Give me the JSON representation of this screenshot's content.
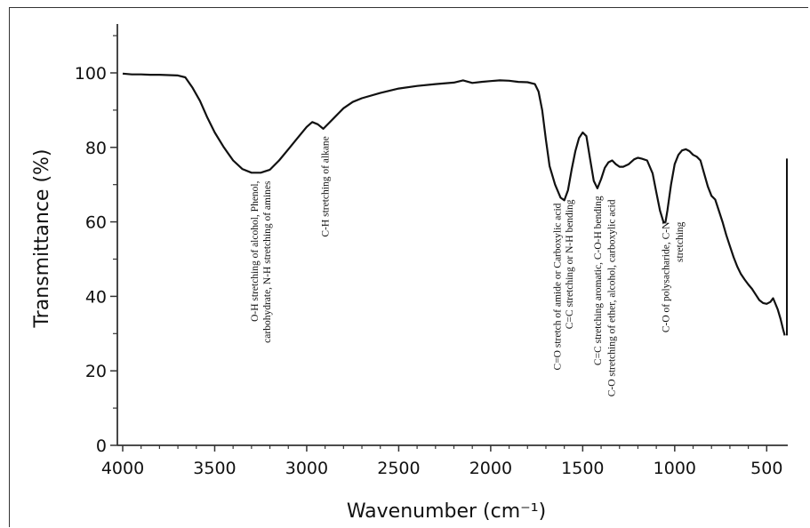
{
  "chart_data": {
    "type": "line",
    "title": "",
    "xlabel": "Wavenumber (cm⁻¹)",
    "ylabel": "Transmittance (%)",
    "xlim": [
      4000,
      400
    ],
    "ylim": [
      0,
      115
    ],
    "x_reversed": true,
    "grid": false,
    "x_ticks": [
      4000,
      3500,
      3000,
      2500,
      2000,
      1500,
      1000,
      500
    ],
    "y_ticks": [
      0,
      20,
      40,
      60,
      80,
      100
    ],
    "series": [
      {
        "color": "#111111",
        "points": [
          [
            4000,
            99.8
          ],
          [
            3950,
            99.6
          ],
          [
            3900,
            99.6
          ],
          [
            3850,
            99.5
          ],
          [
            3800,
            99.5
          ],
          [
            3750,
            99.4
          ],
          [
            3700,
            99.3
          ],
          [
            3660,
            98.8
          ],
          [
            3620,
            96.0
          ],
          [
            3580,
            92.5
          ],
          [
            3540,
            88.0
          ],
          [
            3500,
            84.0
          ],
          [
            3450,
            80.0
          ],
          [
            3400,
            76.5
          ],
          [
            3350,
            74.2
          ],
          [
            3300,
            73.2
          ],
          [
            3250,
            73.2
          ],
          [
            3200,
            74.0
          ],
          [
            3150,
            76.5
          ],
          [
            3100,
            79.5
          ],
          [
            3050,
            82.5
          ],
          [
            3000,
            85.5
          ],
          [
            2970,
            86.8
          ],
          [
            2940,
            86.2
          ],
          [
            2910,
            85.0
          ],
          [
            2880,
            86.5
          ],
          [
            2850,
            88.0
          ],
          [
            2800,
            90.5
          ],
          [
            2750,
            92.2
          ],
          [
            2700,
            93.2
          ],
          [
            2600,
            94.6
          ],
          [
            2500,
            95.8
          ],
          [
            2400,
            96.5
          ],
          [
            2300,
            97.0
          ],
          [
            2200,
            97.4
          ],
          [
            2150,
            98.0
          ],
          [
            2100,
            97.3
          ],
          [
            2050,
            97.6
          ],
          [
            2000,
            97.8
          ],
          [
            1950,
            98.0
          ],
          [
            1900,
            97.9
          ],
          [
            1850,
            97.6
          ],
          [
            1800,
            97.5
          ],
          [
            1760,
            97.0
          ],
          [
            1740,
            95.0
          ],
          [
            1720,
            90.0
          ],
          [
            1700,
            82.0
          ],
          [
            1680,
            75.0
          ],
          [
            1650,
            70.0
          ],
          [
            1620,
            66.5
          ],
          [
            1600,
            65.8
          ],
          [
            1580,
            68.5
          ],
          [
            1560,
            74.0
          ],
          [
            1540,
            79.0
          ],
          [
            1520,
            82.5
          ],
          [
            1500,
            84.0
          ],
          [
            1480,
            83.0
          ],
          [
            1460,
            77.0
          ],
          [
            1440,
            71.0
          ],
          [
            1420,
            69.0
          ],
          [
            1400,
            71.5
          ],
          [
            1380,
            74.5
          ],
          [
            1360,
            76.0
          ],
          [
            1340,
            76.5
          ],
          [
            1320,
            75.5
          ],
          [
            1300,
            74.8
          ],
          [
            1280,
            74.8
          ],
          [
            1250,
            75.5
          ],
          [
            1220,
            76.8
          ],
          [
            1200,
            77.2
          ],
          [
            1180,
            77.0
          ],
          [
            1150,
            76.5
          ],
          [
            1120,
            73.0
          ],
          [
            1100,
            68.0
          ],
          [
            1080,
            63.0
          ],
          [
            1060,
            59.8
          ],
          [
            1050,
            60.0
          ],
          [
            1040,
            63.0
          ],
          [
            1020,
            70.0
          ],
          [
            1000,
            75.5
          ],
          [
            980,
            78.0
          ],
          [
            960,
            79.2
          ],
          [
            940,
            79.5
          ],
          [
            920,
            79.0
          ],
          [
            900,
            78.0
          ],
          [
            880,
            77.5
          ],
          [
            860,
            76.5
          ],
          [
            840,
            73.0
          ],
          [
            820,
            69.5
          ],
          [
            800,
            67.0
          ],
          [
            780,
            66.0
          ],
          [
            760,
            63.0
          ],
          [
            740,
            60.0
          ],
          [
            720,
            56.5
          ],
          [
            700,
            53.5
          ],
          [
            680,
            50.5
          ],
          [
            660,
            48.0
          ],
          [
            640,
            46.0
          ],
          [
            620,
            44.5
          ],
          [
            600,
            43.2
          ],
          [
            580,
            42.0
          ],
          [
            560,
            40.5
          ],
          [
            540,
            39.0
          ],
          [
            520,
            38.2
          ],
          [
            500,
            38.0
          ],
          [
            480,
            38.5
          ],
          [
            465,
            39.5
          ],
          [
            455,
            38.3
          ],
          [
            440,
            36.5
          ],
          [
            425,
            34.0
          ],
          [
            410,
            31.0
          ],
          [
            402,
            29.5
          ]
        ]
      }
    ],
    "annotations": [
      {
        "lines": [
          "O-H stretching of alcohol, Phenol,",
          "carbohydrate, N-H stretching of amines"
        ],
        "wavenumber": 3250,
        "anchor_y": 71
      },
      {
        "lines": [
          "C-H stretching of alkane"
        ],
        "wavenumber": 2900,
        "anchor_y": 83
      },
      {
        "lines": [
          "C=O stretch of amide or Carboxylic acid"
        ],
        "wavenumber": 1640,
        "anchor_y": 65
      },
      {
        "lines": [
          "C=C stretching or N-H  bending"
        ],
        "wavenumber": 1575,
        "anchor_y": 66
      },
      {
        "lines": [
          "C=C stretching aromatic, C-O-H bending"
        ],
        "wavenumber": 1420,
        "anchor_y": 67
      },
      {
        "lines": [
          "C-O stretching of ether, alcohol, carboxylic acid"
        ],
        "wavenumber": 1345,
        "anchor_y": 66
      },
      {
        "lines": [
          "C-O of polysacharide,  C-N"
        ],
        "wavenumber": 1050,
        "anchor_y": 60
      },
      {
        "lines": [
          "stretching"
        ],
        "wavenumber": 975,
        "anchor_y": 60
      }
    ]
  }
}
